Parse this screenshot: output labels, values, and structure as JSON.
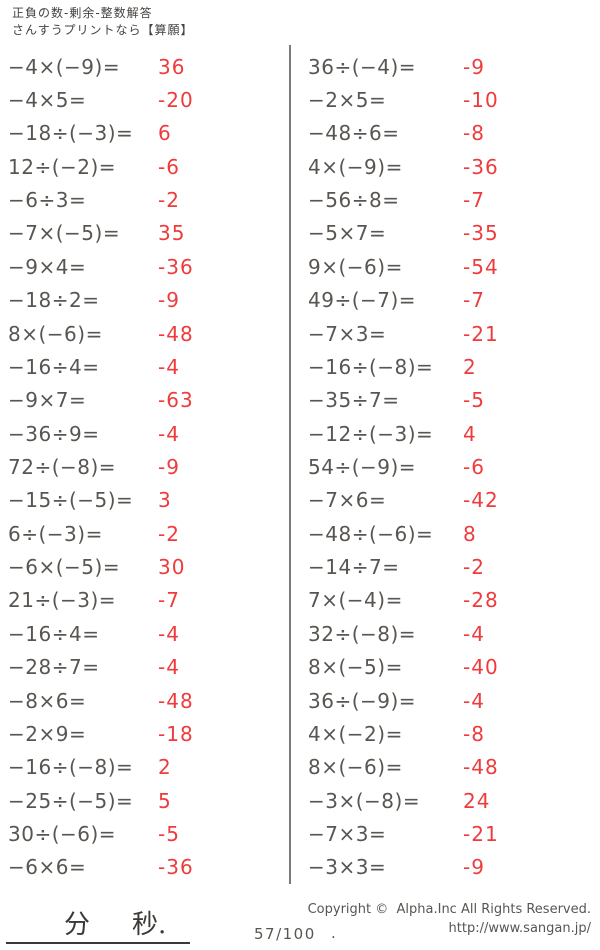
{
  "header": {
    "line1": "正負の数-剰余-整数解答",
    "line2": "さんすうプリントなら【算願】"
  },
  "columns": {
    "left": [
      {
        "problem": "−4×(−9)=",
        "answer": "36"
      },
      {
        "problem": "−4×5=",
        "answer": "-20"
      },
      {
        "problem": "−18÷(−3)=",
        "answer": "6"
      },
      {
        "problem": "12÷(−2)=",
        "answer": "-6"
      },
      {
        "problem": "−6÷3=",
        "answer": "-2"
      },
      {
        "problem": "−7×(−5)=",
        "answer": "35"
      },
      {
        "problem": "−9×4=",
        "answer": "-36"
      },
      {
        "problem": "−18÷2=",
        "answer": "-9"
      },
      {
        "problem": "8×(−6)=",
        "answer": "-48"
      },
      {
        "problem": "−16÷4=",
        "answer": "-4"
      },
      {
        "problem": "−9×7=",
        "answer": "-63"
      },
      {
        "problem": "−36÷9=",
        "answer": "-4"
      },
      {
        "problem": "72÷(−8)=",
        "answer": "-9"
      },
      {
        "problem": "−15÷(−5)=",
        "answer": "3"
      },
      {
        "problem": "6÷(−3)=",
        "answer": "-2"
      },
      {
        "problem": "−6×(−5)=",
        "answer": "30"
      },
      {
        "problem": "21÷(−3)=",
        "answer": "-7"
      },
      {
        "problem": "−16÷4=",
        "answer": "-4"
      },
      {
        "problem": "−28÷7=",
        "answer": "-4"
      },
      {
        "problem": "−8×6=",
        "answer": "-48"
      },
      {
        "problem": "−2×9=",
        "answer": "-18"
      },
      {
        "problem": "−16÷(−8)=",
        "answer": "2"
      },
      {
        "problem": "−25÷(−5)=",
        "answer": "5"
      },
      {
        "problem": "30÷(−6)=",
        "answer": "-5"
      },
      {
        "problem": "−6×6=",
        "answer": "-36"
      }
    ],
    "right": [
      {
        "problem": "36÷(−4)=",
        "answer": "-9"
      },
      {
        "problem": "−2×5=",
        "answer": "-10"
      },
      {
        "problem": "−48÷6=",
        "answer": "-8"
      },
      {
        "problem": "4×(−9)=",
        "answer": "-36"
      },
      {
        "problem": "−56÷8=",
        "answer": "-7"
      },
      {
        "problem": "−5×7=",
        "answer": "-35"
      },
      {
        "problem": "9×(−6)=",
        "answer": "-54"
      },
      {
        "problem": "49÷(−7)=",
        "answer": "-7"
      },
      {
        "problem": "−7×3=",
        "answer": "-21"
      },
      {
        "problem": "−16÷(−8)=",
        "answer": "2"
      },
      {
        "problem": "−35÷7=",
        "answer": "-5"
      },
      {
        "problem": "−12÷(−3)=",
        "answer": "4"
      },
      {
        "problem": "54÷(−9)=",
        "answer": "-6"
      },
      {
        "problem": "−7×6=",
        "answer": "-42"
      },
      {
        "problem": "−48÷(−6)=",
        "answer": "8"
      },
      {
        "problem": "−14÷7=",
        "answer": "-2"
      },
      {
        "problem": "7×(−4)=",
        "answer": "-28"
      },
      {
        "problem": "32÷(−8)=",
        "answer": "-4"
      },
      {
        "problem": "8×(−5)=",
        "answer": "-40"
      },
      {
        "problem": "36÷(−9)=",
        "answer": "-4"
      },
      {
        "problem": "4×(−2)=",
        "answer": "-8"
      },
      {
        "problem": "8×(−6)=",
        "answer": "-48"
      },
      {
        "problem": "−3×(−8)=",
        "answer": "24"
      },
      {
        "problem": "−7×3=",
        "answer": "-21"
      },
      {
        "problem": "−3×3=",
        "answer": "-9"
      }
    ]
  },
  "footer": {
    "minutes_label": "分",
    "seconds_label": "秒.",
    "page_number": "57/100",
    "page_number_suffix": ".",
    "copyright_line1": "Copyright ©  Alpha.Inc All Rights Reserved.",
    "copyright_line2": "http://www.sangan.jp/"
  },
  "colors": {
    "problem_text": "#595551",
    "answer_text": "#ef3b3c",
    "divider": "#7d7a77"
  }
}
